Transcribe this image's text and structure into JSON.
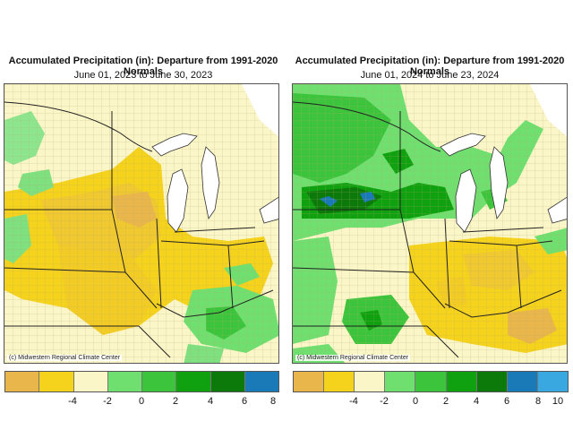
{
  "maps": [
    {
      "title": "Accumulated Precipitation (in): Departure from 1991-2020 Normals",
      "subtitle": "June 01, 2023 to June 30, 2023",
      "credit": "(c) Midwestern Regional Climate Center",
      "legend": {
        "colors": [
          "#e8b64a",
          "#f5d21c",
          "#fbf6c8",
          "#6fe06f",
          "#3cc43c",
          "#0fa10f",
          "#0b7a0b",
          "#1a7ab8"
        ],
        "tick_labels": [
          "-4",
          "-2",
          "0",
          "2",
          "4",
          "6",
          "8"
        ]
      }
    },
    {
      "title": "Accumulated Precipitation (in): Departure from 1991-2020 Normals",
      "subtitle": "June 01, 2024 to June 23, 2024",
      "credit": "(c) Midwestern Regional Climate Center",
      "legend": {
        "colors": [
          "#e8b64a",
          "#f5d21c",
          "#fbf6c8",
          "#6fe06f",
          "#3cc43c",
          "#0fa10f",
          "#0b7a0b",
          "#1a7ab8",
          "#3aa8e0"
        ],
        "tick_labels": [
          "-4",
          "-2",
          "0",
          "2",
          "4",
          "6",
          "8",
          "10"
        ]
      }
    }
  ]
}
